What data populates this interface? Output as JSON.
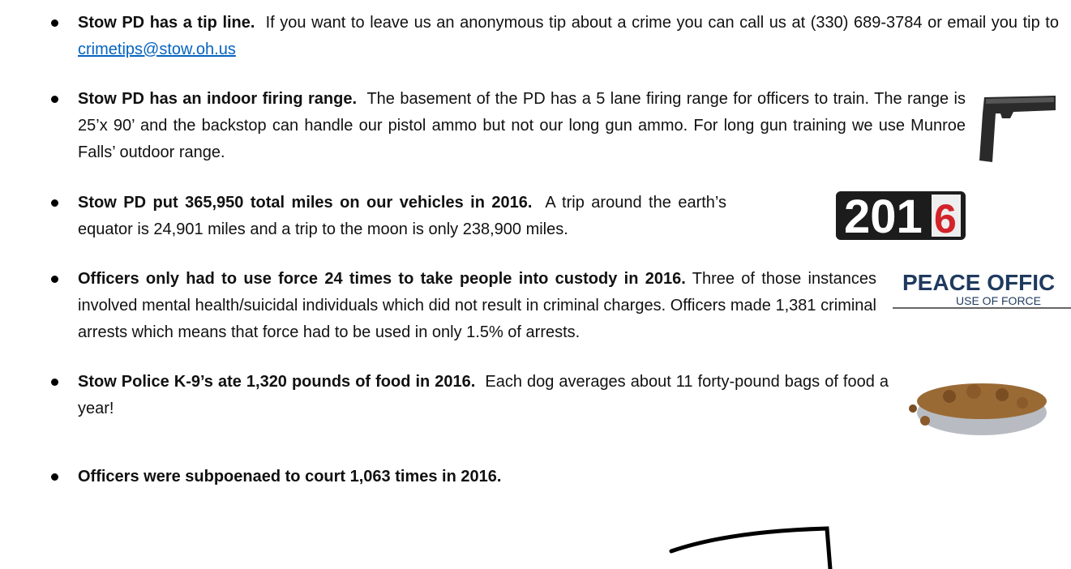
{
  "items": [
    {
      "bold": "Stow PD has a tip line.",
      "text": "If you want to leave us an anonymous tip about a crime you can call us at (330) 689-3784 or email you tip to ",
      "link": "crimetips@stow.oh.us"
    },
    {
      "bold": "Stow PD has an indoor firing range.",
      "text": "The basement of the PD has a 5 lane firing range for officers to train.  The range is 25’x 90’ and the backstop can handle our pistol ammo but not our long gun ammo.  For long gun training we use Munroe Falls’ outdoor range."
    },
    {
      "bold": "Stow PD put 365,950 total miles on our vehicles in 2016.",
      "text": "A trip around the earth’s equator is 24,901 miles and a trip to the moon is only 238,900 miles.",
      "image_text": [
        "201",
        "6"
      ]
    },
    {
      "bold": "Officers only had to use force 24 times to take people into custody in 2016.",
      "text": "Three of those instances involved mental health/suicidal individuals which did not result in criminal charges.  Officers made 1,381 criminal arrests which means that force had to be used in only 1.5% of arrests.",
      "image_text": [
        "PEACE OFFIC",
        "USE OF FORCE"
      ]
    },
    {
      "bold": "Stow Police K-9’s ate 1,320 pounds of food in 2016.",
      "text": "Each dog averages about 11 forty-pound bags of food a year!"
    },
    {
      "bold": "Officers were subpoenaed to court 1,063 times in 2016.",
      "text": ""
    }
  ]
}
